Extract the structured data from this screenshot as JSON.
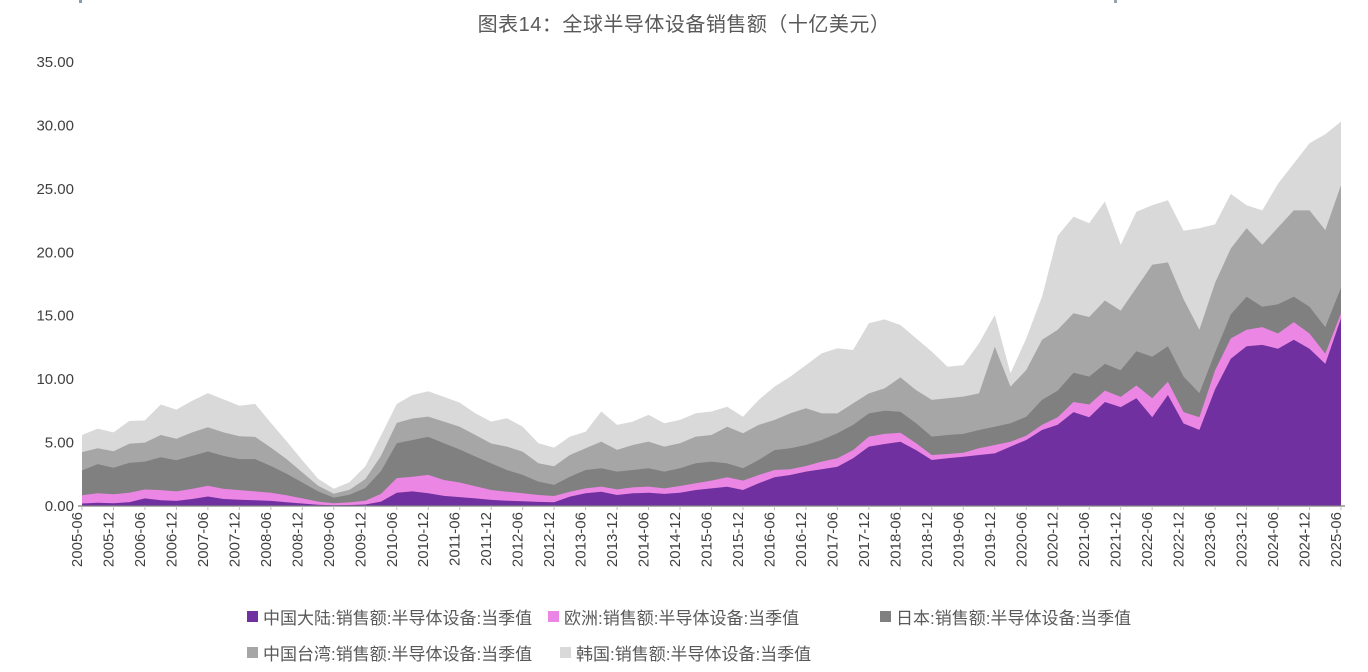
{
  "title": "图表14：全球半导体设备销售额（十亿美元）",
  "chart_data": {
    "type": "area",
    "stacked": true,
    "title": "图表14：全球半导体设备销售额（十亿美元）",
    "unit": "十亿美元",
    "ylim": [
      0,
      35
    ],
    "y_tick_labels": [
      "0.00",
      "5.00",
      "10.00",
      "15.00",
      "20.00",
      "25.00",
      "30.00",
      "35.00"
    ],
    "x_tick_labels": [
      "2005-06",
      "2005-12",
      "2006-06",
      "2006-12",
      "2007-06",
      "2007-12",
      "2008-06",
      "2008-12",
      "2009-06",
      "2009-12",
      "2010-06",
      "2010-12",
      "2011-06",
      "2011-12",
      "2012-06",
      "2012-12",
      "2013-06",
      "2013-12",
      "2014-06",
      "2014-12",
      "2015-06",
      "2015-12",
      "2016-06",
      "2016-12",
      "2017-06",
      "2017-12",
      "2018-06",
      "2018-12",
      "2019-06",
      "2019-12",
      "2020-06",
      "2020-12",
      "2021-06",
      "2021-12",
      "2022-06",
      "2022-12",
      "2023-06",
      "2023-12",
      "2024-06",
      "2024-12",
      "2025-06"
    ],
    "x_frequency": "quarterly",
    "x_start": "2005-06",
    "x_end": "2025-06",
    "legend_position": "bottom",
    "grid": false,
    "series": [
      {
        "id": "china-mainland",
        "name": "中国大陆:销售额:半导体设备:当季值",
        "color": "#7030A0",
        "values": [
          0.2,
          0.25,
          0.22,
          0.3,
          0.6,
          0.45,
          0.4,
          0.55,
          0.75,
          0.55,
          0.5,
          0.45,
          0.4,
          0.3,
          0.2,
          0.1,
          0.06,
          0.08,
          0.12,
          0.35,
          1.05,
          1.15,
          1.0,
          0.8,
          0.7,
          0.6,
          0.48,
          0.42,
          0.37,
          0.32,
          0.29,
          0.74,
          1.0,
          1.13,
          0.87,
          1.0,
          1.05,
          0.95,
          1.05,
          1.26,
          1.39,
          1.52,
          1.26,
          1.79,
          2.26,
          2.44,
          2.71,
          2.89,
          3.1,
          3.76,
          4.68,
          4.89,
          5.07,
          4.41,
          3.63,
          3.76,
          3.89,
          4.02,
          4.15,
          4.68,
          5.2,
          5.99,
          6.4,
          7.4,
          7.0,
          8.2,
          7.8,
          8.5,
          7.0,
          8.75,
          6.5,
          6.0,
          9.2,
          11.6,
          12.6,
          12.7,
          12.4,
          13.1,
          12.4,
          11.2,
          14.8
        ]
      },
      {
        "id": "europe",
        "name": "欧洲:销售额:半导体设备:当季值",
        "color": "#EC86E4",
        "values": [
          0.65,
          0.75,
          0.7,
          0.75,
          0.7,
          0.8,
          0.75,
          0.8,
          0.85,
          0.8,
          0.75,
          0.7,
          0.65,
          0.55,
          0.4,
          0.25,
          0.15,
          0.2,
          0.3,
          0.6,
          1.15,
          1.15,
          1.45,
          1.25,
          1.15,
          0.95,
          0.78,
          0.71,
          0.63,
          0.55,
          0.5,
          0.39,
          0.39,
          0.4,
          0.44,
          0.47,
          0.48,
          0.44,
          0.53,
          0.53,
          0.61,
          0.74,
          0.74,
          0.65,
          0.58,
          0.45,
          0.44,
          0.61,
          0.66,
          0.65,
          0.79,
          0.79,
          0.71,
          0.53,
          0.39,
          0.34,
          0.31,
          0.53,
          0.66,
          0.39,
          0.35,
          0.4,
          0.6,
          0.8,
          1.0,
          0.9,
          0.8,
          1.0,
          1.49,
          1.05,
          0.9,
          1.0,
          1.5,
          1.6,
          1.3,
          1.4,
          1.2,
          1.4,
          1.2,
          0.8,
          0.4
        ]
      },
      {
        "id": "japan",
        "name": "日本:销售额:半导体设备:当季值",
        "color": "#808080",
        "values": [
          1.95,
          2.3,
          2.1,
          2.35,
          2.2,
          2.6,
          2.45,
          2.6,
          2.7,
          2.6,
          2.45,
          2.55,
          2.1,
          1.7,
          1.25,
          0.8,
          0.45,
          0.6,
          1.0,
          1.8,
          2.75,
          2.9,
          3.0,
          2.9,
          2.6,
          2.35,
          2.1,
          1.71,
          1.45,
          1.05,
          0.87,
          1.18,
          1.45,
          1.44,
          1.4,
          1.37,
          1.44,
          1.32,
          1.39,
          1.58,
          1.5,
          1.1,
          0.97,
          1.19,
          1.57,
          1.66,
          1.66,
          1.7,
          1.97,
          1.98,
          1.83,
          1.83,
          1.65,
          1.58,
          1.45,
          1.5,
          1.48,
          1.44,
          1.44,
          1.45,
          1.49,
          1.97,
          2.1,
          2.3,
          2.2,
          2.1,
          2.1,
          2.7,
          3.27,
          2.8,
          2.8,
          1.9,
          1.4,
          1.9,
          2.6,
          1.6,
          2.3,
          2.0,
          2.1,
          2.1,
          2.0
        ]
      },
      {
        "id": "taiwan",
        "name": "中国台湾:销售额:半导体设备:当季值",
        "color": "#A6A6A6",
        "values": [
          1.45,
          1.25,
          1.3,
          1.5,
          1.5,
          1.75,
          1.7,
          1.85,
          1.9,
          1.85,
          1.8,
          1.75,
          1.45,
          1.15,
          0.8,
          0.45,
          0.3,
          0.4,
          0.7,
          1.2,
          1.6,
          1.7,
          1.6,
          1.7,
          1.8,
          1.7,
          1.57,
          1.84,
          1.84,
          1.45,
          1.47,
          1.71,
          1.71,
          2.11,
          1.71,
          1.97,
          2.11,
          1.97,
          1.97,
          2.1,
          2.1,
          2.89,
          2.76,
          2.76,
          2.37,
          2.75,
          2.89,
          2.1,
          1.57,
          1.7,
          1.58,
          1.76,
          2.71,
          2.62,
          2.89,
          2.89,
          2.94,
          2.89,
          6.31,
          2.89,
          3.68,
          4.73,
          4.8,
          4.7,
          4.7,
          5.0,
          4.7,
          5.0,
          7.25,
          6.6,
          6.1,
          5.0,
          5.5,
          5.2,
          5.4,
          4.9,
          6.05,
          6.8,
          7.6,
          7.65,
          8.1
        ]
      },
      {
        "id": "korea",
        "name": "韩国:销售额:半导体设备:当季值",
        "color": "#D9D9D9",
        "values": [
          1.35,
          1.55,
          1.48,
          1.8,
          1.75,
          2.4,
          2.3,
          2.5,
          2.7,
          2.6,
          2.4,
          2.6,
          1.95,
          1.4,
          0.95,
          0.55,
          0.4,
          0.6,
          1.0,
          1.6,
          1.5,
          1.85,
          2.0,
          1.95,
          1.9,
          1.7,
          1.72,
          2.24,
          1.97,
          1.57,
          1.47,
          1.45,
          1.31,
          2.37,
          1.97,
          1.84,
          2.1,
          1.84,
          1.85,
          1.84,
          1.85,
          1.58,
          1.31,
          1.97,
          2.63,
          2.89,
          3.41,
          4.73,
          5.13,
          4.21,
          5.52,
          5.44,
          4.13,
          4.08,
          3.81,
          2.49,
          2.49,
          3.94,
          2.5,
          1.05,
          2.5,
          3.41,
          7.4,
          7.6,
          7.4,
          7.8,
          5.2,
          6.0,
          4.7,
          4.9,
          5.4,
          8.0,
          4.6,
          4.3,
          1.8,
          2.7,
          3.45,
          3.7,
          5.3,
          7.55,
          5.0
        ]
      }
    ]
  }
}
